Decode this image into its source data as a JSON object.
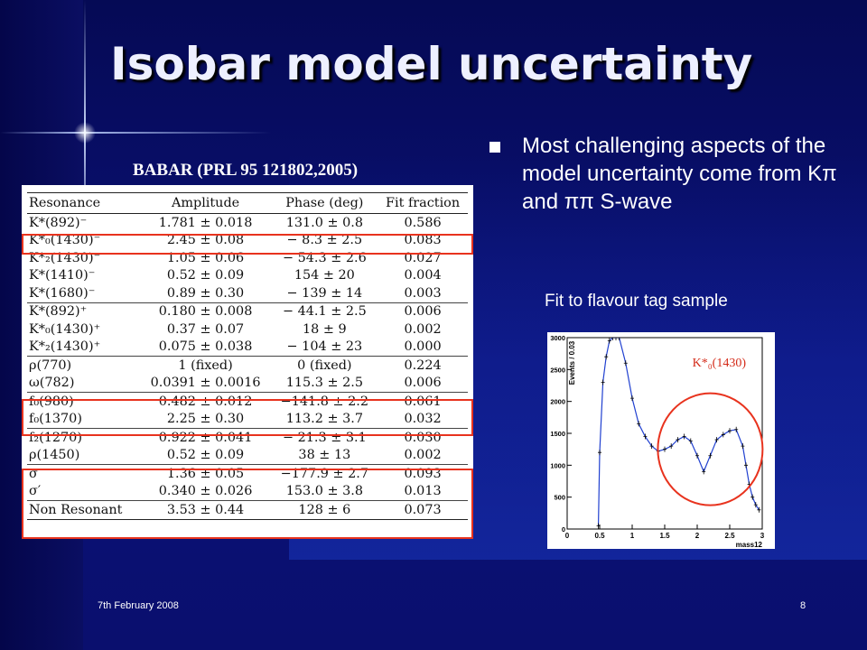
{
  "title": "Isobar model uncertainty",
  "source_label": "BABAR (PRL 95 121802,2005)",
  "bullet": "Most challenging aspects of the model uncertainty come from Kπ and ππ S-wave",
  "fit_caption": "Fit to flavour tag sample",
  "table": {
    "headers": [
      "Resonance",
      "Amplitude",
      "Phase (deg)",
      "Fit fraction"
    ],
    "rows": [
      [
        "K*(892)⁻",
        "1.781 ± 0.018",
        "131.0 ± 0.8",
        "0.586"
      ],
      [
        "K*₀(1430)⁻",
        "2.45 ± 0.08",
        "− 8.3 ± 2.5",
        "0.083"
      ],
      [
        "K*₂(1430)⁻",
        "1.05 ± 0.06",
        "− 54.3 ± 2.6",
        "0.027"
      ],
      [
        "K*(1410)⁻",
        "0.52 ± 0.09",
        "154 ± 20",
        "0.004"
      ],
      [
        "K*(1680)⁻",
        "0.89 ± 0.30",
        "− 139 ± 14",
        "0.003"
      ],
      [
        "K*(892)⁺",
        "0.180 ± 0.008",
        "− 44.1 ± 2.5",
        "0.006"
      ],
      [
        "K*₀(1430)⁺",
        "0.37 ± 0.07",
        "18 ± 9",
        "0.002"
      ],
      [
        "K*₂(1430)⁺",
        "0.075 ± 0.038",
        "− 104 ± 23",
        "0.000"
      ],
      [
        "ρ(770)",
        "1 (fixed)",
        "0 (fixed)",
        "0.224"
      ],
      [
        "ω(782)",
        "0.0391 ± 0.0016",
        "115.3 ± 2.5",
        "0.006"
      ],
      [
        "f₀(980)",
        "0.482 ± 0.012",
        "−141.8 ± 2.2",
        "0.061"
      ],
      [
        "f₀(1370)",
        "2.25 ± 0.30",
        "113.2 ± 3.7",
        "0.032"
      ],
      [
        "f₂(1270)",
        "0.922 ± 0.041",
        "− 21.3 ± 3.1",
        "0.030"
      ],
      [
        "ρ(1450)",
        "0.52 ± 0.09",
        "38 ± 13",
        "0.002"
      ],
      [
        "σ",
        "1.36 ± 0.05",
        "−177.9 ± 2.7",
        "0.093"
      ],
      [
        "σ′",
        "0.340 ± 0.026",
        "153.0 ± 3.8",
        "0.013"
      ],
      [
        "Non Resonant",
        "3.53 ± 0.44",
        "128 ± 6",
        "0.073"
      ]
    ],
    "group_separators_before_rows": [
      5,
      8,
      10,
      12,
      14,
      16
    ]
  },
  "highlight_color": "#e8331e",
  "plot": {
    "annotation": "K*₀(1430)",
    "x_tick_labels": [
      "0",
      "0.5",
      "1",
      "1.5",
      "2",
      "2.5",
      "3"
    ],
    "y_tick_labels": [
      "0",
      "500",
      "1000",
      "1500",
      "2000",
      "2500",
      "3000"
    ],
    "y_axis_label": "Events / 0.03",
    "x_axis_label": "mass12",
    "xlim": [
      0,
      3
    ],
    "ylim": [
      0,
      3000
    ],
    "series": [
      {
        "x": [
          0.48,
          0.5,
          0.55,
          0.6,
          0.65,
          0.7,
          0.75,
          0.8,
          0.9,
          1.0,
          1.1,
          1.2,
          1.3,
          1.4,
          1.5,
          1.6,
          1.7,
          1.8,
          1.9,
          2.0,
          2.1,
          2.2,
          2.3,
          2.4,
          2.5,
          2.6,
          2.7,
          2.75,
          2.8,
          2.85,
          2.9,
          2.95
        ],
        "y": [
          50,
          1200,
          2300,
          2700,
          2950,
          3000,
          3000,
          3000,
          2600,
          2050,
          1650,
          1450,
          1300,
          1220,
          1250,
          1300,
          1400,
          1450,
          1380,
          1150,
          900,
          1150,
          1400,
          1480,
          1540,
          1560,
          1300,
          1000,
          700,
          500,
          380,
          300
        ]
      }
    ]
  },
  "footer_date": "7th February 2008",
  "page_number": "8"
}
